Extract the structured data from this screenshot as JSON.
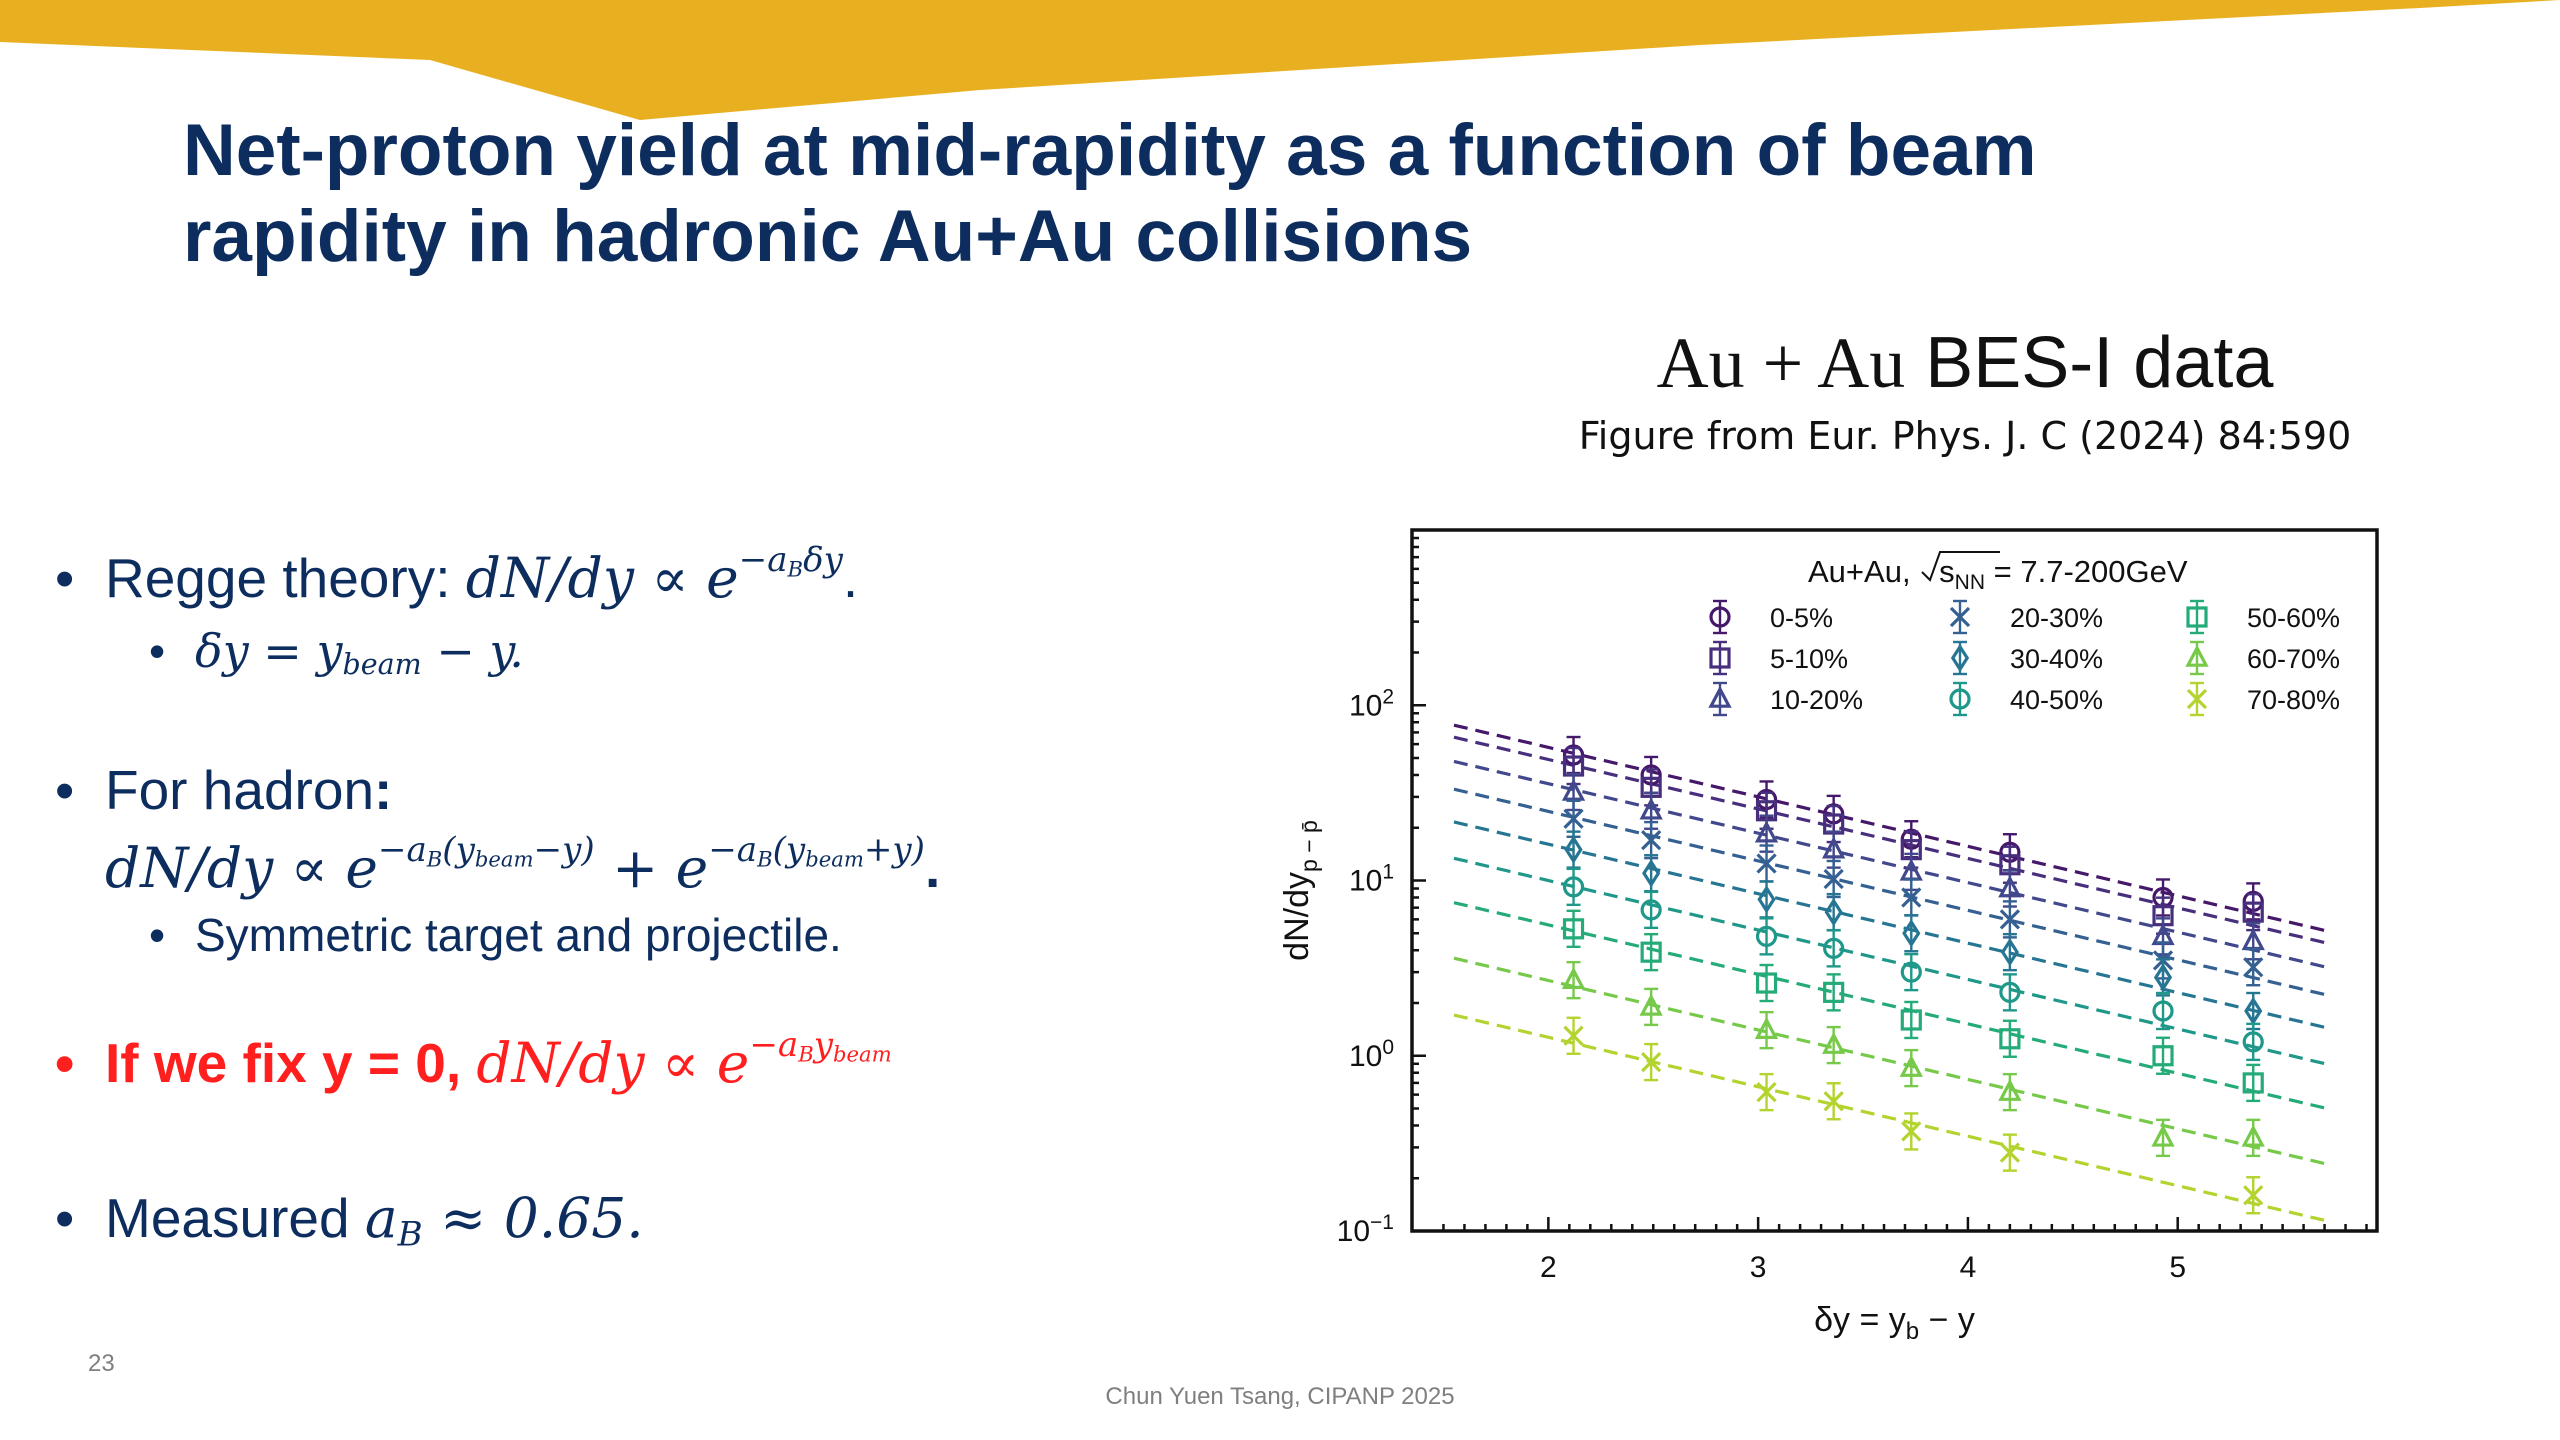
{
  "slide": {
    "title_lines": [
      "Net-proton yield at mid-rapidity as a function of beam",
      "rapidity in hadronic Au+Au collisions"
    ],
    "page_number": "23",
    "footer": "Chun Yuen Tsang, CIPANP 2025"
  },
  "figure": {
    "title_math": "Au + Au",
    "title_text": "BES-I data",
    "source": "Figure from Eur. Phys. J. C (2024) 84:590"
  },
  "bullets": {
    "b1_text": "Regge theory: ",
    "b1_math_base": "dN/dy ∝ e",
    "b1_math_exp": "−a",
    "b1_math_exp_sub": "B",
    "b1_math_exp_tail": "δy",
    "b1_period": ".",
    "b1a_lhs": "δy = ",
    "b1a_y": "y",
    "b1a_sub": "beam",
    "b1a_tail": " − y.",
    "b2_text": "For hadron",
    "b2_colon": ":",
    "b2_eq_base1": "dN/dy ∝ e",
    "b2_exp1_a": "−a",
    "b2_exp1_B": "B",
    "b2_exp1_paren": "(y",
    "b2_exp1_sub": "beam",
    "b2_exp1_tail": "−y)",
    "b2_plus": " + e",
    "b2_exp2_a": "−a",
    "b2_exp2_B": "B",
    "b2_exp2_paren": "(y",
    "b2_exp2_sub": "beam",
    "b2_exp2_tail": "+y)",
    "b2_period": ".",
    "b2a_text": "Symmetric target and projectile.",
    "b3_text": "If we fix y = 0, ",
    "b3_math_base": "dN/dy ∝ e",
    "b3_exp_a": "−a",
    "b3_exp_B": "B",
    "b3_exp_y": "y",
    "b3_exp_sub": "beam",
    "b4_text": "Measured ",
    "b4_a": "a",
    "b4_sub": "B",
    "b4_tail": " ≈ 0.65."
  },
  "colors": {
    "title": "#0c2d5e",
    "banner": "#e8b020",
    "highlight": "#ff1f1f"
  },
  "chart_data": {
    "type": "scatter",
    "legend_title_prefix": "Au+Au, ",
    "legend_title_sqrt": "s",
    "legend_title_sub": "NN",
    "legend_title_suffix": " = 7.7-200GeV",
    "ylabel_main": "dN/dy",
    "ylabel_sub": "p − p̄",
    "xlabel_main": "δy = y",
    "xlabel_sub": "b",
    "xlabel_tail": " − y",
    "xlim": [
      1.35,
      5.95
    ],
    "yscale": "log",
    "ylim": [
      0.1,
      1000
    ],
    "x_ticks": [
      2,
      3,
      4,
      5
    ],
    "x_tick_labels": [
      "2",
      "3",
      "4",
      "5"
    ],
    "y_ticks": [
      0.1,
      1,
      10,
      100
    ],
    "y_tick_labels": [
      {
        "base": "10",
        "exp": "−1"
      },
      {
        "base": "10",
        "exp": "0"
      },
      {
        "base": "10",
        "exp": "1"
      },
      {
        "base": "10",
        "exp": "2"
      }
    ],
    "x": [
      2.12,
      2.49,
      3.04,
      3.36,
      3.73,
      4.2,
      4.93,
      5.36
    ],
    "fit_x_range": [
      1.55,
      5.72
    ],
    "fit_slope": -0.65,
    "series": [
      {
        "name": "0-5%",
        "marker": "circle",
        "color": "#45186a",
        "values": [
          52,
          40,
          29,
          24,
          17.2,
          14.5,
          8.0,
          7.6
        ]
      },
      {
        "name": "5-10%",
        "marker": "square",
        "color": "#482f7e",
        "values": [
          45,
          34,
          25,
          21,
          15,
          12.3,
          6.3,
          6.6
        ]
      },
      {
        "name": "10-20%",
        "marker": "triangle",
        "color": "#41488c",
        "values": [
          32,
          25,
          18.5,
          15,
          11.2,
          9.0,
          4.8,
          4.5
        ]
      },
      {
        "name": "20-30%",
        "marker": "xcross",
        "color": "#356092",
        "values": [
          22.5,
          17,
          12.5,
          10.2,
          8.0,
          6.0,
          3.5,
          3.2
        ]
      },
      {
        "name": "30-40%",
        "marker": "diamond",
        "color": "#267693",
        "values": [
          15,
          11,
          7.8,
          6.6,
          5.0,
          3.9,
          2.8,
          1.8
        ]
      },
      {
        "name": "40-50%",
        "marker": "circle",
        "color": "#1f9889",
        "values": [
          9.2,
          6.8,
          4.8,
          4.1,
          3.0,
          2.3,
          1.8,
          1.2
        ]
      },
      {
        "name": "50-60%",
        "marker": "square",
        "color": "#24ab78",
        "values": [
          5.3,
          3.9,
          2.6,
          2.3,
          1.6,
          1.25,
          1.0,
          0.7
        ]
      },
      {
        "name": "60-70%",
        "marker": "triangle",
        "color": "#77c94a",
        "values": [
          2.7,
          1.9,
          1.4,
          1.15,
          0.85,
          0.62,
          0.34,
          0.34
        ]
      },
      {
        "name": "70-80%",
        "marker": "xcross",
        "color": "#b3d32e",
        "values": [
          1.3,
          0.92,
          0.62,
          0.55,
          0.37,
          0.28,
          null,
          0.16
        ]
      }
    ]
  }
}
